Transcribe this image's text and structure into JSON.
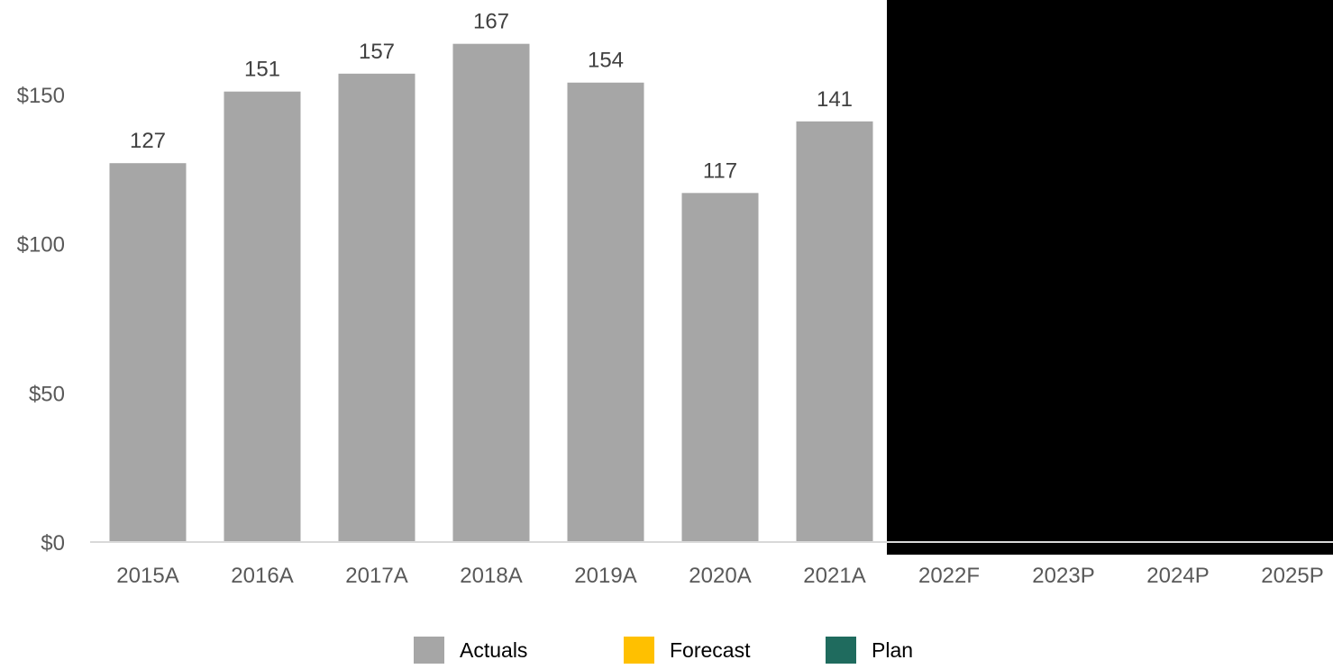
{
  "chart_data": {
    "type": "bar",
    "categories": [
      "2015A",
      "2016A",
      "2017A",
      "2018A",
      "2019A",
      "2020A",
      "2021A",
      "2022F",
      "2023P",
      "2024P",
      "2025P"
    ],
    "values": [
      127,
      151,
      157,
      167,
      154,
      117,
      141,
      null,
      null,
      null,
      null
    ],
    "data_labels": [
      "127",
      "151",
      "157",
      "167",
      "154",
      "117",
      "141",
      "",
      "",
      "",
      ""
    ],
    "y_ticks": [
      "$0",
      "$50",
      "$100",
      "$150"
    ],
    "y_tick_values": [
      0,
      50,
      100,
      150
    ],
    "ylim": [
      0,
      175
    ],
    "grid": false,
    "legend_position": "bottom",
    "series": [
      {
        "name": "Actuals",
        "color": "#A6A6A6"
      },
      {
        "name": "Forecast",
        "color": "#FFC000"
      },
      {
        "name": "Plan",
        "color": "#1F6B5E"
      }
    ],
    "title": "",
    "xlabel": "",
    "ylabel": "",
    "redacted_region": "black box covering 2022F–2025P bars"
  },
  "legend": {
    "items": [
      {
        "label": "Actuals",
        "color": "#A6A6A6"
      },
      {
        "label": "Forecast",
        "color": "#FFC000"
      },
      {
        "label": "Plan",
        "color": "#1F6B5E"
      }
    ]
  }
}
